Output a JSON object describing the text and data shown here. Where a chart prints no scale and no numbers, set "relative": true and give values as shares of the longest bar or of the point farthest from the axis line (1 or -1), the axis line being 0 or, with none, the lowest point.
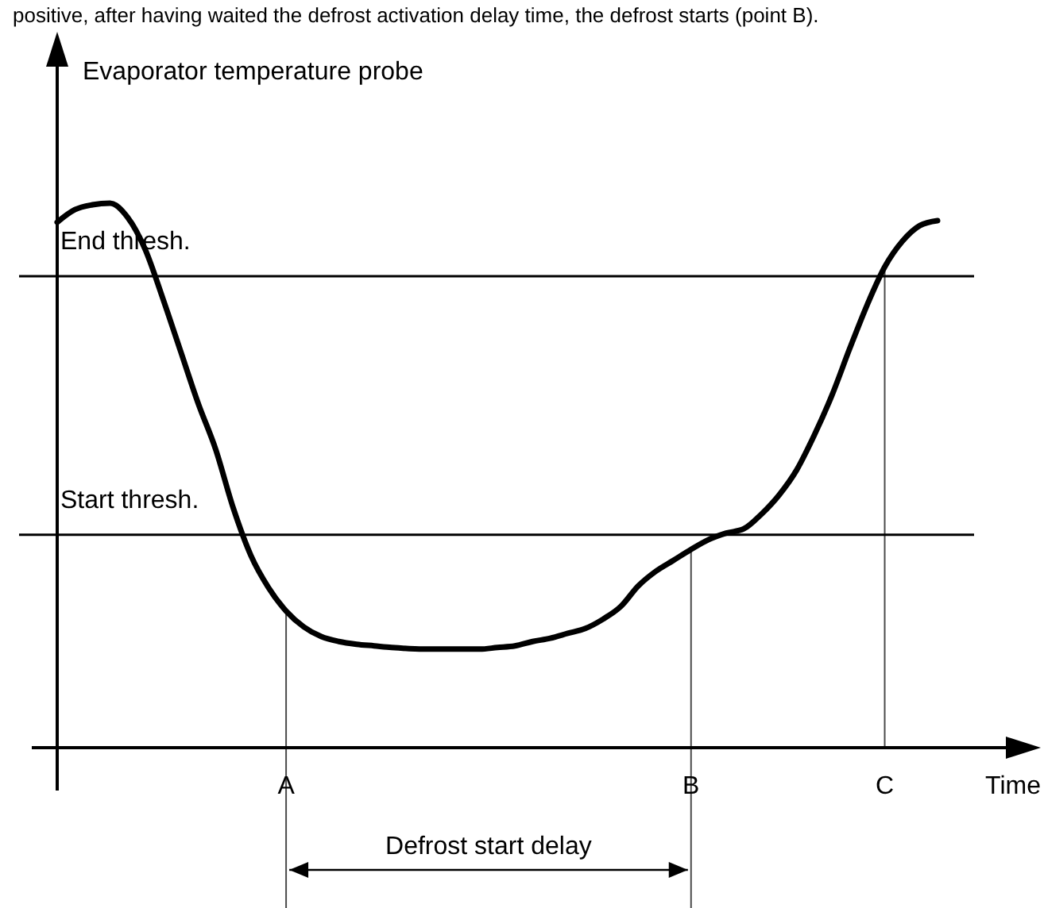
{
  "chart_data": {
    "type": "line",
    "relative": true,
    "annotations": [
      "positive, after having waited the defrost activation delay time, the defrost starts (point B).",
      "Defrost start delay"
    ],
    "ylabel": "Evaporator temperature probe",
    "xlabel": "Time",
    "categories": [
      null,
      null,
      null,
      null,
      null,
      null,
      null,
      null,
      null,
      null,
      null,
      null,
      null,
      "A",
      null,
      null,
      null,
      null,
      null,
      null,
      null,
      null,
      null,
      null,
      null,
      null,
      null,
      null,
      null,
      null,
      null,
      null,
      null,
      null,
      null,
      null,
      "B",
      null,
      null,
      null,
      null,
      null,
      null,
      null,
      null,
      null,
      null,
      "C",
      null,
      null,
      null
    ],
    "series": [
      {
        "color": "#000000",
        "values": [
          0.965,
          0.988,
          0.997,
          1.0,
          0.974,
          0.915,
          0.825,
          0.729,
          0.633,
          0.548,
          0.44,
          0.353,
          0.294,
          0.251,
          0.222,
          0.204,
          0.195,
          0.19,
          0.187,
          0.184,
          0.182,
          0.181,
          0.181,
          0.181,
          0.181,
          0.184,
          0.187,
          0.195,
          0.201,
          0.21,
          0.219,
          0.236,
          0.259,
          0.297,
          0.324,
          0.344,
          0.364,
          0.382,
          0.394,
          0.402,
          0.429,
          0.464,
          0.51,
          0.574,
          0.647,
          0.732,
          0.813,
          0.883,
          0.93,
          0.959,
          0.968
        ]
      }
    ],
    "ref_lines": [
      {
        "axis": "y",
        "value": 0.866,
        "label": "End thresh."
      },
      {
        "axis": "y",
        "value": 0.391,
        "label": "Start thresh."
      },
      {
        "axis": "x",
        "value": "A"
      },
      {
        "axis": "x",
        "value": "B"
      },
      {
        "axis": "x",
        "value": "C"
      }
    ]
  }
}
